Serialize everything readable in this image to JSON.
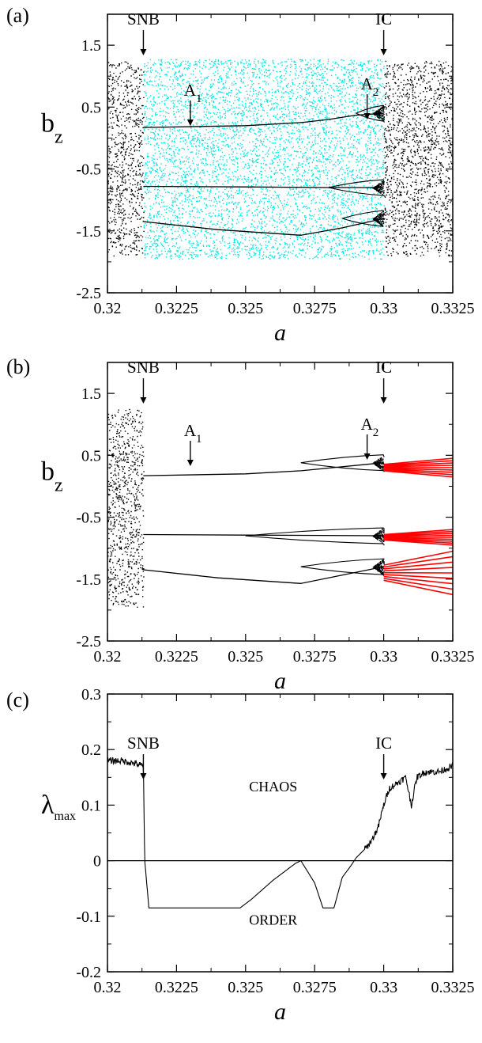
{
  "chart_data": [
    {
      "type": "scatter",
      "panel": "(a)",
      "xlabel": "a",
      "ylabel": "b",
      "ylabel_sub": "z",
      "xlim": [
        0.32,
        0.3325
      ],
      "ylim": [
        -2.5,
        2.0
      ],
      "xticks": [
        "0.32",
        "0.3225",
        "0.325",
        "0.3275",
        "0.33",
        "0.3325"
      ],
      "yticks": [
        "1.5",
        "0.5",
        "-0.5",
        "-1.5",
        "-2.5"
      ],
      "annotations": [
        {
          "label": "SNB",
          "sub": "",
          "x": 0.3213
        },
        {
          "label": "A",
          "sub": "1",
          "x": 0.323
        },
        {
          "label": "A",
          "sub": "2",
          "x": 0.3294
        },
        {
          "label": "IC",
          "sub": "",
          "x": 0.33
        }
      ],
      "series": [
        {
          "color": "#000000",
          "kind": "chaotic band",
          "x_range": [
            0.32,
            0.3213
          ],
          "y_range": [
            -1.9,
            1.25
          ]
        },
        {
          "color": "#00e5e5",
          "kind": "chaotic band",
          "x_range": [
            0.3213,
            0.33
          ],
          "y_range": [
            -1.95,
            1.28
          ]
        },
        {
          "color": "#000000",
          "kind": "chaotic band",
          "x_range": [
            0.33,
            0.3325
          ],
          "y_range": [
            -1.9,
            1.25
          ]
        },
        {
          "color": "#000000",
          "kind": "periodic branch",
          "x": [
            0.3213,
            0.325,
            0.327,
            0.328,
            0.329,
            0.33
          ],
          "y": [
            0.17,
            0.2,
            0.25,
            0.3,
            0.37,
            0.4
          ]
        },
        {
          "color": "#000000",
          "kind": "periodic branch",
          "x": [
            0.3213,
            0.325,
            0.328,
            0.33
          ],
          "y": [
            -0.78,
            -0.79,
            -0.8,
            -0.8
          ]
        },
        {
          "color": "#000000",
          "kind": "periodic branch",
          "x": [
            0.3213,
            0.324,
            0.327,
            0.3285,
            0.33
          ],
          "y": [
            -1.35,
            -1.48,
            -1.57,
            -1.45,
            -1.3
          ]
        }
      ]
    },
    {
      "type": "scatter",
      "panel": "(b)",
      "xlabel": "a",
      "ylabel": "b",
      "ylabel_sub": "z",
      "xlim": [
        0.32,
        0.3325
      ],
      "ylim": [
        -2.5,
        2.0
      ],
      "xticks": [
        "0.32",
        "0.3225",
        "0.325",
        "0.3275",
        "0.33",
        "0.3325"
      ],
      "yticks": [
        "1.5",
        "0.5",
        "-0.5",
        "-1.5",
        "-2.5"
      ],
      "annotations": [
        {
          "label": "SNB",
          "sub": "",
          "x": 0.3213
        },
        {
          "label": "A",
          "sub": "1",
          "x": 0.323
        },
        {
          "label": "A",
          "sub": "2",
          "x": 0.3294
        },
        {
          "label": "IC",
          "sub": "",
          "x": 0.33
        }
      ],
      "series": [
        {
          "color": "#000000",
          "kind": "chaotic band",
          "x_range": [
            0.32,
            0.3213
          ],
          "y_range": [
            -1.95,
            1.25
          ]
        },
        {
          "color": "#000000",
          "kind": "periodic branch",
          "x": [
            0.3213,
            0.325,
            0.327,
            0.33
          ],
          "y": [
            0.17,
            0.2,
            0.25,
            0.38
          ]
        },
        {
          "color": "#000000",
          "kind": "periodic branch",
          "x": [
            0.3213,
            0.325,
            0.33
          ],
          "y": [
            -0.78,
            -0.79,
            -0.8
          ]
        },
        {
          "color": "#000000",
          "kind": "periodic branch",
          "x": [
            0.3213,
            0.324,
            0.327,
            0.33
          ],
          "y": [
            -1.35,
            -1.48,
            -1.57,
            -1.3
          ]
        },
        {
          "color": "#ff0000",
          "kind": "chaotic branch",
          "x_range": [
            0.33,
            0.3325
          ],
          "y_range": [
            0.15,
            0.45
          ]
        },
        {
          "color": "#ff0000",
          "kind": "chaotic branch",
          "x_range": [
            0.33,
            0.3325
          ],
          "y_range": [
            -0.95,
            -0.7
          ]
        },
        {
          "color": "#ff0000",
          "kind": "chaotic branch",
          "x_range": [
            0.33,
            0.3325
          ],
          "y_range": [
            -1.75,
            -1.05
          ]
        }
      ]
    },
    {
      "type": "line",
      "panel": "(c)",
      "xlabel": "a",
      "ylabel": "λ",
      "ylabel_sub": "max",
      "xlim": [
        0.32,
        0.3325
      ],
      "ylim": [
        -0.2,
        0.3
      ],
      "xticks": [
        "0.32",
        "0.3225",
        "0.325",
        "0.3275",
        "0.33",
        "0.3325"
      ],
      "yticks": [
        "0.3",
        "0.2",
        "0.1",
        "0",
        "-0.1",
        "-0.2"
      ],
      "annotations": [
        {
          "label": "SNB",
          "sub": "",
          "x": 0.3213
        },
        {
          "label": "IC",
          "sub": "",
          "x": 0.33
        }
      ],
      "region_labels": [
        "CHAOS",
        "ORDER"
      ],
      "series": [
        {
          "color": "#000000",
          "x": [
            0.32,
            0.3205,
            0.321,
            0.3213,
            0.32135,
            0.3215,
            0.322,
            0.323,
            0.324,
            0.3248,
            0.3252,
            0.326,
            0.3268,
            0.327,
            0.3275,
            0.3278,
            0.3282,
            0.3285,
            0.3288,
            0.329,
            0.3292,
            0.3294,
            0.3296,
            0.3298,
            0.33,
            0.3302,
            0.3305,
            0.3308,
            0.331,
            0.3312,
            0.3315,
            0.332,
            0.3325
          ],
          "y": [
            0.18,
            0.18,
            0.175,
            0.17,
            0.0,
            -0.085,
            -0.085,
            -0.085,
            -0.085,
            -0.085,
            -0.07,
            -0.035,
            -0.005,
            0.0,
            -0.04,
            -0.085,
            -0.085,
            -0.03,
            -0.01,
            0.005,
            0.015,
            0.025,
            0.04,
            0.06,
            0.1,
            0.13,
            0.14,
            0.15,
            0.1,
            0.15,
            0.16,
            0.16,
            0.17
          ]
        }
      ]
    }
  ]
}
